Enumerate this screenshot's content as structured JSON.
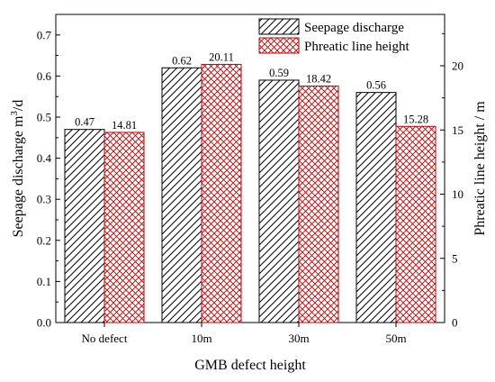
{
  "chart_data": {
    "type": "bar",
    "xlabel": "GMB defect height",
    "categories": [
      "No defect",
      "10m",
      "30m",
      "50m"
    ],
    "left_axis": {
      "label_main": "Seepage discharge m",
      "label_sup": "3",
      "label_tail": "/d",
      "ylim": [
        0,
        0.75
      ],
      "ticks": [
        "0.0",
        "0.1",
        "0.2",
        "0.3",
        "0.4",
        "0.5",
        "0.6",
        "0.7"
      ],
      "tick_values": [
        0,
        0.1,
        0.2,
        0.3,
        0.4,
        0.5,
        0.6,
        0.7
      ]
    },
    "right_axis": {
      "label": "Phreatic line height / m",
      "ylim": [
        0,
        24
      ],
      "ticks": [
        "0",
        "5",
        "10",
        "15",
        "20"
      ],
      "tick_values": [
        0,
        5,
        10,
        15,
        20
      ]
    },
    "series": [
      {
        "name": "Seepage discharge",
        "axis": "left",
        "pattern": "diagonal-hatch",
        "color": "#000000",
        "values": [
          0.47,
          0.62,
          0.59,
          0.56
        ],
        "labels": [
          "0.47",
          "0.62",
          "0.59",
          "0.56"
        ]
      },
      {
        "name": "Phreatic line height",
        "axis": "right",
        "pattern": "cross-hatch",
        "color": "#c00000",
        "values": [
          14.81,
          20.11,
          18.42,
          15.28
        ],
        "labels": [
          "14.81",
          "20.11",
          "18.42",
          "15.28"
        ]
      }
    ],
    "legend_position": "top-right",
    "grid": false
  }
}
